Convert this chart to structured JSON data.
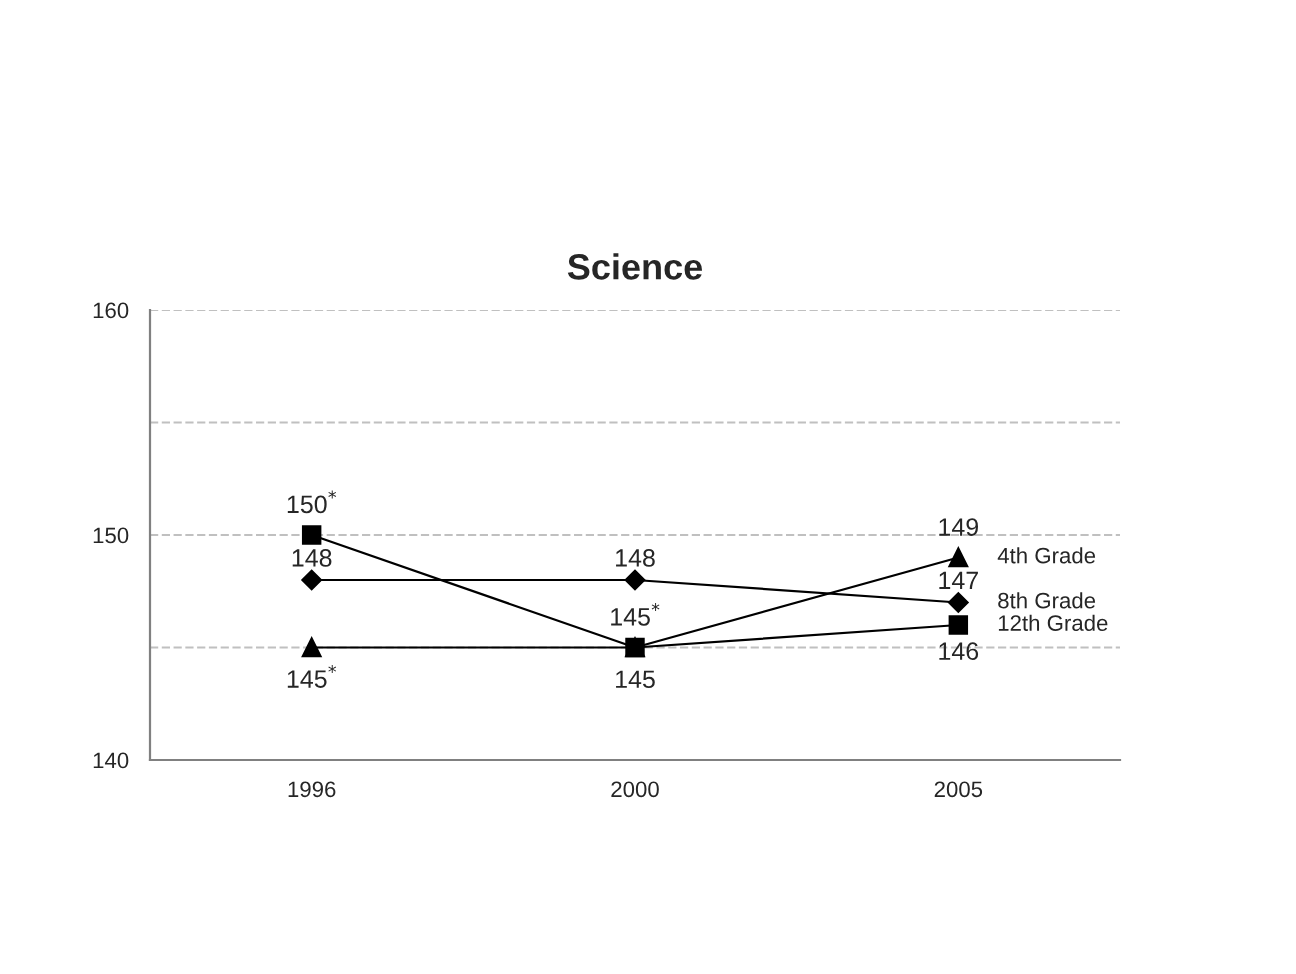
{
  "chart_data": {
    "type": "line",
    "title": "Science",
    "categories": [
      "1996",
      "2000",
      "2005"
    ],
    "series": [
      {
        "name": "4th Grade",
        "color": "#000000",
        "marker": "triangle",
        "values": [
          145,
          145,
          149
        ],
        "value_labels": [
          "145$^{*}$",
          "145$^{*}$",
          "149"
        ]
      },
      {
        "name": "8th Grade",
        "color": "#000000",
        "marker": "diamond",
        "values": [
          148,
          148,
          147
        ],
        "value_labels": [
          "148",
          "148",
          "147"
        ]
      },
      {
        "name": "12th Grade",
        "color": "#000000",
        "marker": "square",
        "values": [
          150,
          145,
          146
        ],
        "value_labels": [
          "150$^{*}$",
          "145",
          "146"
        ]
      }
    ],
    "ylim": [
      140,
      160
    ],
    "yticks": [
      140,
      {
        "value": 145,
        "label": null
      },
      150,
      {
        "value": 155,
        "label": null
      },
      160
    ],
    "grid": "y",
    "legend": false,
    "line_style": "solid"
  }
}
